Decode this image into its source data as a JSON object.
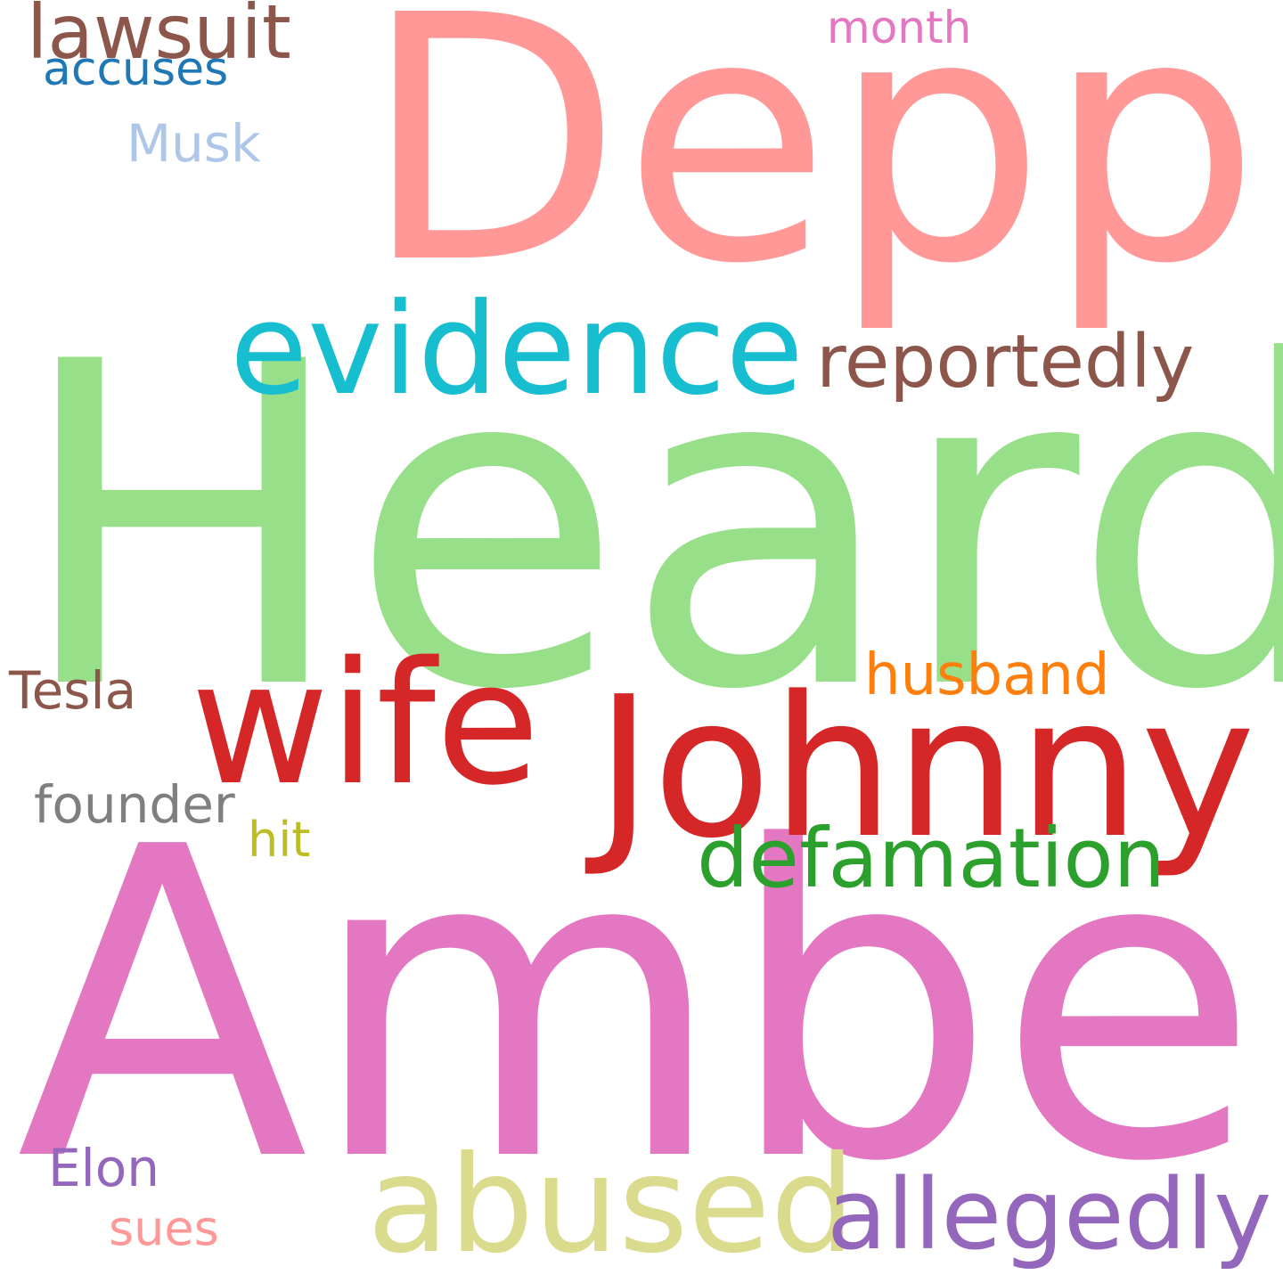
{
  "wordcloud": {
    "words": {
      "depp": {
        "text": "Depp",
        "color": "#ff9896"
      },
      "heard": {
        "text": "Heard",
        "color": "#98df8a"
      },
      "amber": {
        "text": "Amber",
        "color": "#e377c2"
      },
      "johnny": {
        "text": "Johnny",
        "color": "#d62728"
      },
      "wife": {
        "text": "wife",
        "color": "#d62728"
      },
      "evidence": {
        "text": "evidence",
        "color": "#17becf"
      },
      "abused": {
        "text": "abused",
        "color": "#dbdb8d"
      },
      "allegedly": {
        "text": "allegedly",
        "color": "#9467bd"
      },
      "defamation": {
        "text": "defamation",
        "color": "#2ca02c"
      },
      "reportedly": {
        "text": "reportedly",
        "color": "#8c564b"
      },
      "lawsuit": {
        "text": "lawsuit",
        "color": "#8c564b"
      },
      "husband": {
        "text": "husband",
        "color": "#ff7f0e"
      },
      "tesla": {
        "text": "Tesla",
        "color": "#8c564b"
      },
      "founder": {
        "text": "founder",
        "color": "#7f7f7f"
      },
      "hit": {
        "text": "hit",
        "color": "#bcbd22"
      },
      "accuses": {
        "text": "accuses",
        "color": "#1f77b4"
      },
      "musk": {
        "text": "Musk",
        "color": "#aec7e8"
      },
      "month": {
        "text": "month",
        "color": "#e377c2"
      },
      "elon": {
        "text": "Elon",
        "color": "#9467bd"
      },
      "sues": {
        "text": "sues",
        "color": "#ff9896"
      }
    }
  }
}
